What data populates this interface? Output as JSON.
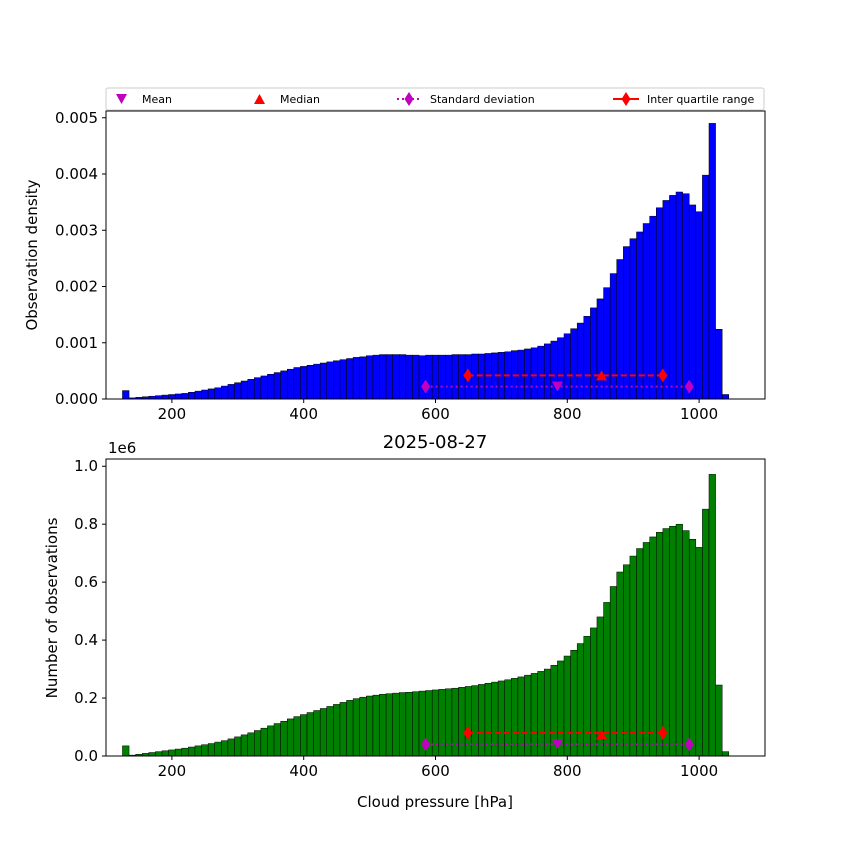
{
  "chart_data": [
    {
      "type": "bar",
      "title": "",
      "xlabel": "",
      "ylabel": "Observation density",
      "xlim": [
        100,
        1100
      ],
      "ylim": [
        0,
        0.00512
      ],
      "xticks": [
        200,
        400,
        600,
        800,
        1000
      ],
      "yticks": [
        0.0,
        0.001,
        0.002,
        0.003,
        0.004,
        0.005
      ],
      "ytick_labels": [
        "0.000",
        "0.001",
        "0.002",
        "0.003",
        "0.004",
        "0.005"
      ],
      "bin_start": 125,
      "bin_width": 10,
      "bar_color": "#0000ff",
      "values": [
        0.00015,
        2e-05,
        3e-05,
        4e-05,
        5e-05,
        6e-05,
        7e-05,
        8e-05,
        9e-05,
        0.0001,
        0.00012,
        0.00014,
        0.00016,
        0.00018,
        0.0002,
        0.00023,
        0.00026,
        0.00029,
        0.00032,
        0.00035,
        0.00038,
        0.00041,
        0.00044,
        0.00047,
        0.0005,
        0.00053,
        0.00056,
        0.00058,
        0.0006,
        0.00062,
        0.00064,
        0.00066,
        0.00068,
        0.0007,
        0.00072,
        0.00074,
        0.00075,
        0.00077,
        0.00078,
        0.00079,
        0.00079,
        0.00079,
        0.00079,
        0.00078,
        0.00078,
        0.00077,
        0.00078,
        0.00078,
        0.00078,
        0.00078,
        0.00079,
        0.00079,
        0.00079,
        0.0008,
        0.0008,
        0.00081,
        0.00082,
        0.00083,
        0.00084,
        0.00086,
        0.00087,
        0.00089,
        0.00091,
        0.00094,
        0.00098,
        0.00103,
        0.00109,
        0.00116,
        0.00125,
        0.00135,
        0.00147,
        0.00162,
        0.00178,
        0.00198,
        0.00223,
        0.00248,
        0.00271,
        0.00285,
        0.00297,
        0.00312,
        0.00325,
        0.0034,
        0.00353,
        0.00362,
        0.00368,
        0.00365,
        0.00345,
        0.00333,
        0.00398,
        0.0049,
        0.00124,
        8e-05
      ],
      "stats": {
        "mean": 785,
        "median": 852,
        "std_range": [
          585,
          985
        ],
        "iqr_range": [
          649,
          945
        ],
        "y_marker_std": 0.00022,
        "y_marker_mean": 0.00022,
        "y_marker_iqr": 0.00042,
        "y_marker_median": 0.00042
      },
      "legend": [
        {
          "label": "Mean",
          "marker": "triangle-down",
          "color": "#bf00bf"
        },
        {
          "label": "Median",
          "marker": "triangle-up",
          "color": "#ff0000"
        },
        {
          "label": "Standard deviation",
          "marker": "diamond-dotted",
          "color": "#bf00bf"
        },
        {
          "label": "Inter quartile range",
          "marker": "diamond-solid",
          "color": "#ff0000"
        }
      ],
      "legend_position": "top"
    },
    {
      "type": "bar",
      "title": "2025-08-27",
      "xlabel": "Cloud pressure [hPa]",
      "ylabel": "Number of observations",
      "y_offset_label": "1e6",
      "xlim": [
        100,
        1100
      ],
      "ylim": [
        0,
        1.025
      ],
      "xticks": [
        200,
        400,
        600,
        800,
        1000
      ],
      "yticks": [
        0.0,
        0.2,
        0.4,
        0.6,
        0.8,
        1.0
      ],
      "ytick_labels": [
        "0.0",
        "0.2",
        "0.4",
        "0.6",
        "0.8",
        "1.0"
      ],
      "bin_start": 125,
      "bin_width": 10,
      "bar_color": "#008000",
      "values": [
        0.035,
        0.003,
        0.006,
        0.009,
        0.012,
        0.015,
        0.018,
        0.021,
        0.024,
        0.027,
        0.031,
        0.035,
        0.039,
        0.043,
        0.048,
        0.053,
        0.059,
        0.066,
        0.073,
        0.08,
        0.088,
        0.096,
        0.104,
        0.112,
        0.12,
        0.128,
        0.136,
        0.143,
        0.15,
        0.157,
        0.164,
        0.171,
        0.178,
        0.185,
        0.192,
        0.198,
        0.203,
        0.207,
        0.21,
        0.213,
        0.215,
        0.217,
        0.219,
        0.22,
        0.222,
        0.224,
        0.226,
        0.228,
        0.23,
        0.232,
        0.234,
        0.237,
        0.24,
        0.243,
        0.247,
        0.251,
        0.255,
        0.259,
        0.263,
        0.268,
        0.273,
        0.279,
        0.285,
        0.292,
        0.3,
        0.313,
        0.328,
        0.345,
        0.365,
        0.388,
        0.413,
        0.442,
        0.48,
        0.53,
        0.585,
        0.635,
        0.66,
        0.69,
        0.716,
        0.737,
        0.756,
        0.772,
        0.785,
        0.793,
        0.8,
        0.778,
        0.748,
        0.72,
        0.852,
        0.972,
        0.245,
        0.015
      ],
      "stats": {
        "mean": 785,
        "median": 852,
        "std_range": [
          585,
          985
        ],
        "iqr_range": [
          649,
          945
        ],
        "y_marker_std": 0.04,
        "y_marker_mean": 0.04,
        "y_marker_iqr": 0.08,
        "y_marker_median": 0.075
      }
    }
  ]
}
